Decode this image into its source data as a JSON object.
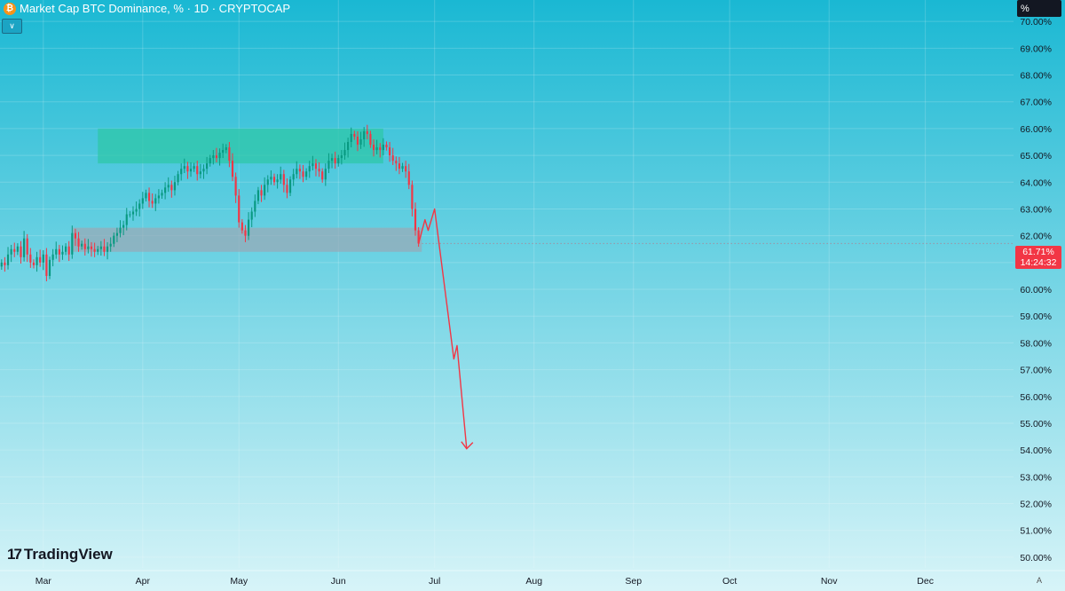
{
  "header": {
    "title": "Market Cap BTC Dominance, % · 1D · CRYPTOCAP",
    "icon": "btc-icon",
    "collapse_icon": "chevron-down-icon"
  },
  "price_scale": {
    "unit_button": "%",
    "current_price": "61.71%",
    "countdown": "14:24:32",
    "auto_label": "A"
  },
  "branding": {
    "logo_mark": "17",
    "logo_text": "TradingView"
  },
  "colors": {
    "bg_top": "#1ab8d3",
    "bg_bottom": "#d7f4f8",
    "up": "#089981",
    "down": "#f23645",
    "resistance_zone": "#2fc7a8",
    "support_zone": "#9aa8b5",
    "projection": "#f23645"
  },
  "chart_data": {
    "type": "candlestick",
    "title": "Market Cap BTC Dominance, % · 1D · CRYPTOCAP",
    "ylabel": "%",
    "ylim": [
      49.6,
      70.8
    ],
    "y_ticks": [
      "70.00%",
      "69.00%",
      "68.00%",
      "67.00%",
      "66.00%",
      "65.00%",
      "64.00%",
      "63.00%",
      "62.00%",
      "61.00%",
      "60.00%",
      "59.00%",
      "58.00%",
      "57.00%",
      "56.00%",
      "55.00%",
      "54.00%",
      "53.00%",
      "52.00%",
      "51.00%",
      "50.00%"
    ],
    "x_ticks": [
      {
        "label": "Mar",
        "day": 0
      },
      {
        "label": "Apr",
        "day": 31
      },
      {
        "label": "May",
        "day": 61
      },
      {
        "label": "Jun",
        "day": 92
      },
      {
        "label": "Jul",
        "day": 122
      },
      {
        "label": "Aug",
        "day": 153
      },
      {
        "label": "Sep",
        "day": 184
      },
      {
        "label": "Oct",
        "day": 214
      },
      {
        "label": "Nov",
        "day": 245
      },
      {
        "label": "Dec",
        "day": 275
      }
    ],
    "x_range_days": [
      -13.5,
      302.5
    ],
    "series": [
      {
        "daily_close": [
          [
            -13,
            61.0
          ],
          [
            -12,
            60.9
          ],
          [
            -11,
            61.3
          ],
          [
            -10,
            61.5
          ],
          [
            -9,
            61.4
          ],
          [
            -8,
            61.6
          ],
          [
            -7,
            61.2
          ],
          [
            -6,
            61.9
          ],
          [
            -5,
            61.3
          ],
          [
            -4,
            61.0
          ],
          [
            -3,
            60.9
          ],
          [
            -2,
            61.2
          ],
          [
            -1,
            61.0
          ],
          [
            0,
            61.3
          ],
          [
            1,
            60.5
          ],
          [
            2,
            61.1
          ],
          [
            3,
            61.3
          ],
          [
            4,
            61.5
          ],
          [
            5,
            61.3
          ],
          [
            6,
            61.4
          ],
          [
            7,
            61.6
          ],
          [
            8,
            61.3
          ],
          [
            9,
            62.1
          ],
          [
            10,
            61.9
          ],
          [
            11,
            61.6
          ],
          [
            12,
            61.7
          ],
          [
            13,
            61.5
          ],
          [
            14,
            61.6
          ],
          [
            15,
            61.5
          ],
          [
            16,
            61.4
          ],
          [
            17,
            61.5
          ],
          [
            18,
            61.6
          ],
          [
            19,
            61.4
          ],
          [
            20,
            61.6
          ],
          [
            21,
            61.7
          ],
          [
            22,
            62.0
          ],
          [
            23,
            62.1
          ],
          [
            24,
            62.3
          ],
          [
            25,
            62.4
          ],
          [
            26,
            62.8
          ],
          [
            27,
            62.8
          ],
          [
            28,
            62.9
          ],
          [
            29,
            63.0
          ],
          [
            30,
            63.2
          ],
          [
            31,
            63.4
          ],
          [
            32,
            63.6
          ],
          [
            33,
            63.3
          ],
          [
            34,
            63.2
          ],
          [
            35,
            63.4
          ],
          [
            36,
            63.5
          ],
          [
            37,
            63.6
          ],
          [
            38,
            63.8
          ],
          [
            39,
            63.9
          ],
          [
            40,
            63.7
          ],
          [
            41,
            64.0
          ],
          [
            42,
            64.3
          ],
          [
            43,
            64.5
          ],
          [
            44,
            64.6
          ],
          [
            45,
            64.4
          ],
          [
            46,
            64.5
          ],
          [
            47,
            64.6
          ],
          [
            48,
            64.3
          ],
          [
            49,
            64.4
          ],
          [
            50,
            64.5
          ],
          [
            51,
            64.7
          ],
          [
            52,
            64.9
          ],
          [
            53,
            65.0
          ],
          [
            54,
            64.9
          ],
          [
            55,
            65.1
          ],
          [
            56,
            65.2
          ],
          [
            57,
            65.3
          ],
          [
            58,
            64.8
          ],
          [
            59,
            64.2
          ],
          [
            60,
            63.5
          ],
          [
            61,
            62.5
          ],
          [
            62,
            62.2
          ],
          [
            63,
            62.0
          ],
          [
            64,
            62.6
          ],
          [
            65,
            62.9
          ],
          [
            66,
            63.3
          ],
          [
            67,
            63.7
          ],
          [
            68,
            63.5
          ],
          [
            69,
            63.9
          ],
          [
            70,
            64.1
          ],
          [
            71,
            64.2
          ],
          [
            72,
            64.0
          ],
          [
            73,
            64.1
          ],
          [
            74,
            64.3
          ],
          [
            75,
            63.9
          ],
          [
            76,
            63.6
          ],
          [
            77,
            64.1
          ],
          [
            78,
            64.3
          ],
          [
            79,
            64.5
          ],
          [
            80,
            64.4
          ],
          [
            81,
            64.2
          ],
          [
            82,
            64.4
          ],
          [
            83,
            64.6
          ],
          [
            84,
            64.7
          ],
          [
            85,
            64.5
          ],
          [
            86,
            64.4
          ],
          [
            87,
            64.1
          ],
          [
            88,
            64.5
          ],
          [
            89,
            64.8
          ],
          [
            90,
            64.9
          ],
          [
            91,
            64.7
          ],
          [
            92,
            64.9
          ],
          [
            93,
            65.0
          ],
          [
            94,
            65.2
          ],
          [
            95,
            65.5
          ],
          [
            96,
            65.8
          ],
          [
            97,
            65.7
          ],
          [
            98,
            65.4
          ],
          [
            99,
            65.6
          ],
          [
            100,
            65.9
          ],
          [
            101,
            65.8
          ],
          [
            102,
            65.4
          ],
          [
            103,
            65.2
          ],
          [
            104,
            65.3
          ],
          [
            105,
            65.2
          ],
          [
            106,
            65.4
          ],
          [
            107,
            65.3
          ],
          [
            108,
            65.0
          ],
          [
            109,
            64.8
          ],
          [
            110,
            64.7
          ],
          [
            111,
            64.5
          ],
          [
            112,
            64.6
          ],
          [
            113,
            64.4
          ],
          [
            114,
            63.9
          ],
          [
            115,
            63.0
          ],
          [
            116,
            62.2
          ],
          [
            117,
            61.71
          ]
        ]
      },
      {
        "name": "",
        "points": [
          [
            117,
            61.71
          ],
          [
            119,
            62.6
          ],
          [
            120,
            62.2
          ],
          [
            122,
            63.0
          ],
          [
            128,
            57.4
          ],
          [
            129,
            57.9
          ],
          [
            132,
            54.05
          ]
        ]
      }
    ],
    "zones": [
      {
        "day_start": 17,
        "day_end": 106,
        "y_low": 64.7,
        "y_high": 66.0
      },
      {
        "day_start": 9,
        "day_end": 118,
        "y_low": 61.4,
        "y_high": 62.3
      }
    ],
    "last_price": 61.71,
    "grid": true
  }
}
